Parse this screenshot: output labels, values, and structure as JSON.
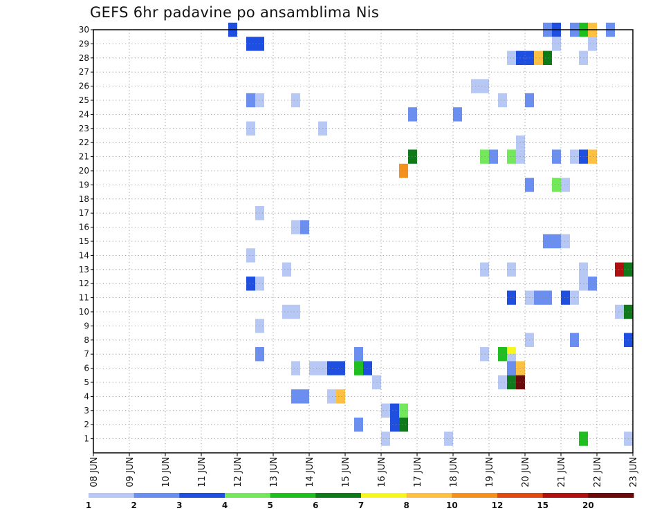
{
  "chart_data": {
    "type": "heatmap",
    "title": "GEFS 6hr padavine po ansamblima Nis",
    "xlabel": "",
    "ylabel": "",
    "x_tick_labels": [
      "08 JUN",
      "09 JUN",
      "10 JUN",
      "11 JUN",
      "12 JUN",
      "13 JUN",
      "14 JUN",
      "15 JUN",
      "16 JUN",
      "17 JUN",
      "18 JUN",
      "19 JUN",
      "20 JUN",
      "21 JUN",
      "22 JUN",
      "23 JUN"
    ],
    "x_range_days": [
      8,
      23
    ],
    "time_step_hours": 6,
    "y_tick_labels": [
      "1",
      "2",
      "3",
      "4",
      "5",
      "6",
      "7",
      "8",
      "9",
      "10",
      "11",
      "12",
      "13",
      "14",
      "15",
      "16",
      "17",
      "18",
      "19",
      "20",
      "21",
      "22",
      "23",
      "24",
      "25",
      "26",
      "27",
      "28",
      "29",
      "30"
    ],
    "y_range": [
      0,
      30
    ],
    "grid": true,
    "legend": {
      "placement": "bottom",
      "levels": [
        "1",
        "2",
        "3",
        "4",
        "5",
        "6",
        "7",
        "8",
        "10",
        "12",
        "15",
        "20"
      ],
      "colors": [
        "#b7c8f5",
        "#6b8ff0",
        "#1e4fe0",
        "#72e85a",
        "#1fbf1f",
        "#0f7a1a",
        "#f7f71e",
        "#fdc040",
        "#f5901a",
        "#e04a10",
        "#b01010",
        "#6b0a0a"
      ]
    },
    "cells": [
      {
        "day": 11.75,
        "member": 30,
        "level": 3
      },
      {
        "day": 12.25,
        "member": 29,
        "level": 3
      },
      {
        "day": 12.5,
        "member": 29,
        "level": 3
      },
      {
        "day": 20.5,
        "member": 30,
        "level": 2
      },
      {
        "day": 20.75,
        "member": 30,
        "level": 3
      },
      {
        "day": 21.25,
        "member": 30,
        "level": 2
      },
      {
        "day": 21.5,
        "member": 30,
        "level": 5
      },
      {
        "day": 21.75,
        "member": 30,
        "level": 8
      },
      {
        "day": 22.25,
        "member": 30,
        "level": 2
      },
      {
        "day": 20.75,
        "member": 29,
        "level": 1
      },
      {
        "day": 21.75,
        "member": 29,
        "level": 1
      },
      {
        "day": 19.5,
        "member": 28,
        "level": 1
      },
      {
        "day": 19.75,
        "member": 28,
        "level": 3
      },
      {
        "day": 20,
        "member": 28,
        "level": 3
      },
      {
        "day": 20.25,
        "member": 28,
        "level": 8
      },
      {
        "day": 20.5,
        "member": 28,
        "level": 6
      },
      {
        "day": 21.5,
        "member": 28,
        "level": 1
      },
      {
        "day": 18.5,
        "member": 26,
        "level": 1
      },
      {
        "day": 18.75,
        "member": 26,
        "level": 1
      },
      {
        "day": 12.25,
        "member": 25,
        "level": 2
      },
      {
        "day": 12.5,
        "member": 25,
        "level": 1
      },
      {
        "day": 13.5,
        "member": 25,
        "level": 1
      },
      {
        "day": 19.25,
        "member": 25,
        "level": 1
      },
      {
        "day": 20,
        "member": 25,
        "level": 2
      },
      {
        "day": 16.75,
        "member": 24,
        "level": 2
      },
      {
        "day": 18,
        "member": 24,
        "level": 2
      },
      {
        "day": 12.25,
        "member": 23,
        "level": 1
      },
      {
        "day": 14.25,
        "member": 23,
        "level": 1
      },
      {
        "day": 19.75,
        "member": 22,
        "level": 1
      },
      {
        "day": 16.75,
        "member": 21,
        "level": 6
      },
      {
        "day": 18.75,
        "member": 21,
        "level": 4
      },
      {
        "day": 19,
        "member": 21,
        "level": 2
      },
      {
        "day": 19.5,
        "member": 21,
        "level": 4
      },
      {
        "day": 19.75,
        "member": 21,
        "level": 1
      },
      {
        "day": 20.75,
        "member": 21,
        "level": 2
      },
      {
        "day": 21.25,
        "member": 21,
        "level": 1
      },
      {
        "day": 21.5,
        "member": 21,
        "level": 3
      },
      {
        "day": 21.75,
        "member": 21,
        "level": 8
      },
      {
        "day": 16.5,
        "member": 20,
        "level": 10
      },
      {
        "day": 20,
        "member": 19,
        "level": 2
      },
      {
        "day": 20.75,
        "member": 19,
        "level": 4
      },
      {
        "day": 21,
        "member": 19,
        "level": 1
      },
      {
        "day": 12.5,
        "member": 17,
        "level": 1
      },
      {
        "day": 13.5,
        "member": 16,
        "level": 1
      },
      {
        "day": 13.75,
        "member": 16,
        "level": 2
      },
      {
        "day": 20.5,
        "member": 15,
        "level": 2
      },
      {
        "day": 20.75,
        "member": 15,
        "level": 2
      },
      {
        "day": 21,
        "member": 15,
        "level": 1
      },
      {
        "day": 12.25,
        "member": 14,
        "level": 1
      },
      {
        "day": 13.25,
        "member": 13,
        "level": 1
      },
      {
        "day": 18.75,
        "member": 13,
        "level": 1
      },
      {
        "day": 19.5,
        "member": 13,
        "level": 1
      },
      {
        "day": 21.5,
        "member": 13,
        "level": 1
      },
      {
        "day": 22.5,
        "member": 13,
        "level": 15
      },
      {
        "day": 22.75,
        "member": 13,
        "level": 6
      },
      {
        "day": 12.25,
        "member": 12,
        "level": 3
      },
      {
        "day": 12.5,
        "member": 12,
        "level": 1
      },
      {
        "day": 21.5,
        "member": 12,
        "level": 1
      },
      {
        "day": 21.75,
        "member": 12,
        "level": 2
      },
      {
        "day": 19.5,
        "member": 11,
        "level": 3
      },
      {
        "day": 20,
        "member": 11,
        "level": 1
      },
      {
        "day": 20.25,
        "member": 11,
        "level": 2
      },
      {
        "day": 20.5,
        "member": 11,
        "level": 2
      },
      {
        "day": 21,
        "member": 11,
        "level": 3
      },
      {
        "day": 21.25,
        "member": 11,
        "level": 1
      },
      {
        "day": 13.25,
        "member": 10,
        "level": 1
      },
      {
        "day": 13.5,
        "member": 10,
        "level": 1
      },
      {
        "day": 22.5,
        "member": 10,
        "level": 1
      },
      {
        "day": 22.75,
        "member": 10,
        "level": 6
      },
      {
        "day": 12.5,
        "member": 9,
        "level": 1
      },
      {
        "day": 20,
        "member": 8,
        "level": 1
      },
      {
        "day": 21.25,
        "member": 8,
        "level": 2
      },
      {
        "day": 22.75,
        "member": 8,
        "level": 3
      },
      {
        "day": 12.5,
        "member": 7,
        "level": 2
      },
      {
        "day": 15.25,
        "member": 7,
        "level": 2
      },
      {
        "day": 18.75,
        "member": 7,
        "level": 1
      },
      {
        "day": 19.25,
        "member": 7,
        "level": 5
      },
      {
        "day": 19.5,
        "member": 7,
        "level": 7
      },
      {
        "day": 19.5,
        "member": 6.5,
        "level": 1
      },
      {
        "day": 13.5,
        "member": 6,
        "level": 1
      },
      {
        "day": 14,
        "member": 6,
        "level": 1
      },
      {
        "day": 14.25,
        "member": 6,
        "level": 1
      },
      {
        "day": 14.5,
        "member": 6,
        "level": 3
      },
      {
        "day": 14.75,
        "member": 6,
        "level": 3
      },
      {
        "day": 15.25,
        "member": 6,
        "level": 5
      },
      {
        "day": 15.5,
        "member": 6,
        "level": 3
      },
      {
        "day": 19.5,
        "member": 6,
        "level": 2
      },
      {
        "day": 19.75,
        "member": 6,
        "level": 8
      },
      {
        "day": 15.75,
        "member": 5,
        "level": 1
      },
      {
        "day": 19.25,
        "member": 5,
        "level": 1
      },
      {
        "day": 19.5,
        "member": 5,
        "level": 6
      },
      {
        "day": 19.75,
        "member": 5,
        "level": 20
      },
      {
        "day": 13.5,
        "member": 4,
        "level": 2
      },
      {
        "day": 13.75,
        "member": 4,
        "level": 2
      },
      {
        "day": 14.5,
        "member": 4,
        "level": 1
      },
      {
        "day": 14.75,
        "member": 4,
        "level": 8
      },
      {
        "day": 16,
        "member": 3,
        "level": 1
      },
      {
        "day": 16.25,
        "member": 3,
        "level": 3
      },
      {
        "day": 16.5,
        "member": 3,
        "level": 4
      },
      {
        "day": 15.25,
        "member": 2,
        "level": 2
      },
      {
        "day": 16.25,
        "member": 2,
        "level": 3
      },
      {
        "day": 16.5,
        "member": 2,
        "level": 6
      },
      {
        "day": 16,
        "member": 1,
        "level": 1
      },
      {
        "day": 17.75,
        "member": 1,
        "level": 1
      },
      {
        "day": 21.5,
        "member": 1,
        "level": 5
      },
      {
        "day": 22.75,
        "member": 1,
        "level": 1
      }
    ]
  }
}
